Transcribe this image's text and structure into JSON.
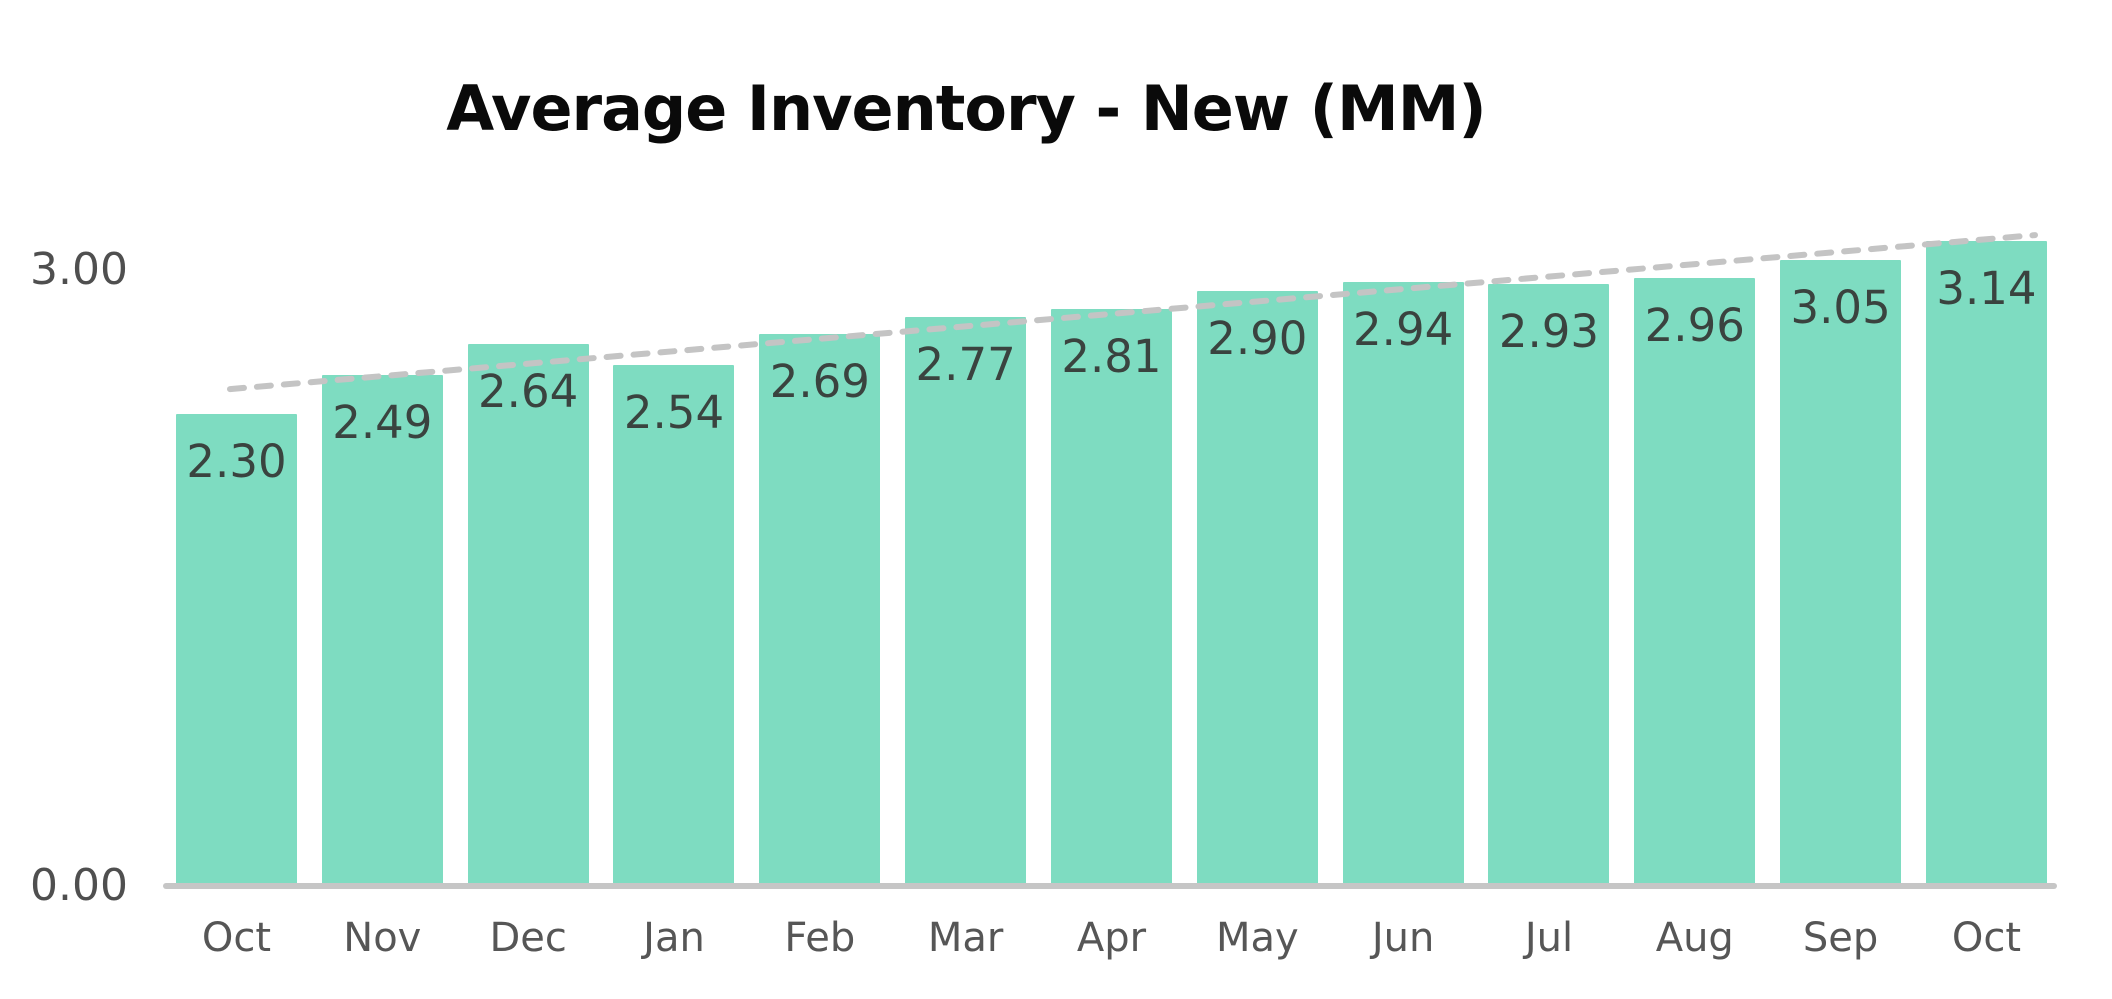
{
  "chart_data": {
    "type": "bar",
    "title": "Average Inventory - New (MM)",
    "categories": [
      "Oct",
      "Nov",
      "Dec",
      "Jan",
      "Feb",
      "Mar",
      "Apr",
      "May",
      "Jun",
      "Jul",
      "Aug",
      "Sep",
      "Oct"
    ],
    "values": [
      2.3,
      2.49,
      2.64,
      2.54,
      2.69,
      2.77,
      2.81,
      2.9,
      2.94,
      2.93,
      2.96,
      3.05,
      3.14
    ],
    "value_labels": [
      "2.30",
      "2.49",
      "2.64",
      "2.54",
      "2.69",
      "2.77",
      "2.81",
      "2.90",
      "2.94",
      "2.93",
      "2.96",
      "3.05",
      "3.14"
    ],
    "xlabel": "",
    "ylabel": "",
    "ylim": [
      0.0,
      3.5
    ],
    "y_ticks": {
      "top": "3.00",
      "bottom": "0.00"
    },
    "grid": "off",
    "legend": "none",
    "trendline": {
      "style": "dashed",
      "start_value": 2.42,
      "end_value": 3.17
    },
    "colors": {
      "bar_fill": "#7edcc1",
      "bar_value_text": "#3a433f",
      "axis_tick_text": "#4f4f4f",
      "x_label_text": "#565656",
      "axis_line": "#c6c6c6",
      "trendline": "#c4c4c4",
      "title_text": "#0a0a0a",
      "background": "#ffffff"
    }
  }
}
